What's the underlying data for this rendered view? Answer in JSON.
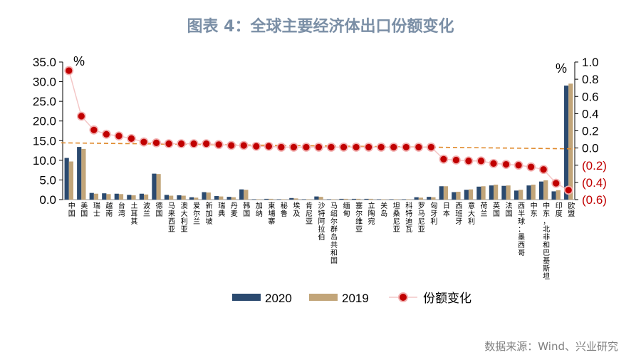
{
  "title": "图表 4：全球主要经济体出口份额变化",
  "source": "数据来源：Wind、兴业研究",
  "colors": {
    "title": "#7b8fa6",
    "series_2020": "#2b4a6f",
    "series_2019": "#c2a579",
    "share_change": "#c00000",
    "share_change_line": "#f4c7c7",
    "trend": "#e08a2c",
    "axis": "#000000",
    "negative_tick": "#c00000",
    "source": "#808080"
  },
  "chart_data": {
    "type": "bar",
    "categories": [
      "中国",
      "美国",
      "瑞士",
      "越南",
      "台湾",
      "土耳其",
      "波兰",
      "德国",
      "马来西亚",
      "澳大利亚",
      "爱尔兰",
      "新加坡",
      "瑞典",
      "丹麦",
      "韩国",
      "加纳",
      "柬埔寨",
      "秘鲁",
      "埃及",
      "肯尼亚",
      "沙特阿拉伯",
      "马绍尔群岛共和国",
      "缅甸",
      "塞尔维亚",
      "立陶宛",
      "关岛",
      "坦桑尼亚",
      "科特迪瓦",
      "罗马尼亚",
      "匈牙利",
      "日本",
      "西班牙",
      "意大利",
      "荷兰",
      "英国",
      "法国",
      "西半球：墨西哥",
      "中东",
      "中东，北非和巴基斯坦",
      "印度",
      "欧盟"
    ],
    "series": [
      {
        "name": "2020",
        "axis": "left",
        "values": [
          10.6,
          13.4,
          1.7,
          1.6,
          1.5,
          1.2,
          1.5,
          6.6,
          1.2,
          1.1,
          0.6,
          1.9,
          0.9,
          0.7,
          2.6,
          0.1,
          0.2,
          0.1,
          0.4,
          0.1,
          0.8,
          0.1,
          0.2,
          0.2,
          0.2,
          0.1,
          0.1,
          0.1,
          0.6,
          0.7,
          3.4,
          1.9,
          2.5,
          3.3,
          3.6,
          3.5,
          2.3,
          3.6,
          4.6,
          2.1,
          29.0
        ]
      },
      {
        "name": "2019",
        "axis": "left",
        "values": [
          9.7,
          12.9,
          1.5,
          1.4,
          1.4,
          1.1,
          1.3,
          6.5,
          1.0,
          1.0,
          0.5,
          1.8,
          0.8,
          0.6,
          2.5,
          0.1,
          0.2,
          0.1,
          0.3,
          0.1,
          0.7,
          0.1,
          0.2,
          0.2,
          0.2,
          0.1,
          0.1,
          0.1,
          0.5,
          0.6,
          3.4,
          2.0,
          2.6,
          3.4,
          3.8,
          3.6,
          2.5,
          3.8,
          4.9,
          2.4,
          29.5
        ]
      },
      {
        "name": "份额变化",
        "axis": "right",
        "values": [
          0.9,
          0.37,
          0.21,
          0.16,
          0.14,
          0.11,
          0.07,
          0.06,
          0.05,
          0.05,
          0.05,
          0.05,
          0.04,
          0.03,
          0.03,
          0.02,
          0.02,
          0.01,
          0.01,
          0.01,
          0.01,
          0.01,
          0.01,
          0.01,
          0.01,
          0.01,
          0.01,
          0.01,
          0.01,
          0.01,
          -0.13,
          -0.14,
          -0.15,
          -0.15,
          -0.18,
          -0.19,
          -0.2,
          -0.22,
          -0.25,
          -0.41,
          -0.49
        ]
      }
    ],
    "y_left": {
      "ylim": [
        0,
        35
      ],
      "ticks": [
        "0.0",
        "5.0",
        "10.0",
        "15.0",
        "20.0",
        "25.0",
        "30.0",
        "35.0"
      ]
    },
    "y_right": {
      "ylim": [
        -0.6,
        1.0
      ],
      "ticks": [
        "(0.6)",
        "(0.4)",
        "(0.2)",
        "0.0",
        "0.2",
        "0.4",
        "0.6",
        "0.8",
        "1.0"
      ]
    },
    "unit_left": "%",
    "unit_right": "%",
    "trend_line": {
      "type": "dashed"
    },
    "legend": {
      "placement": "bottom"
    }
  }
}
